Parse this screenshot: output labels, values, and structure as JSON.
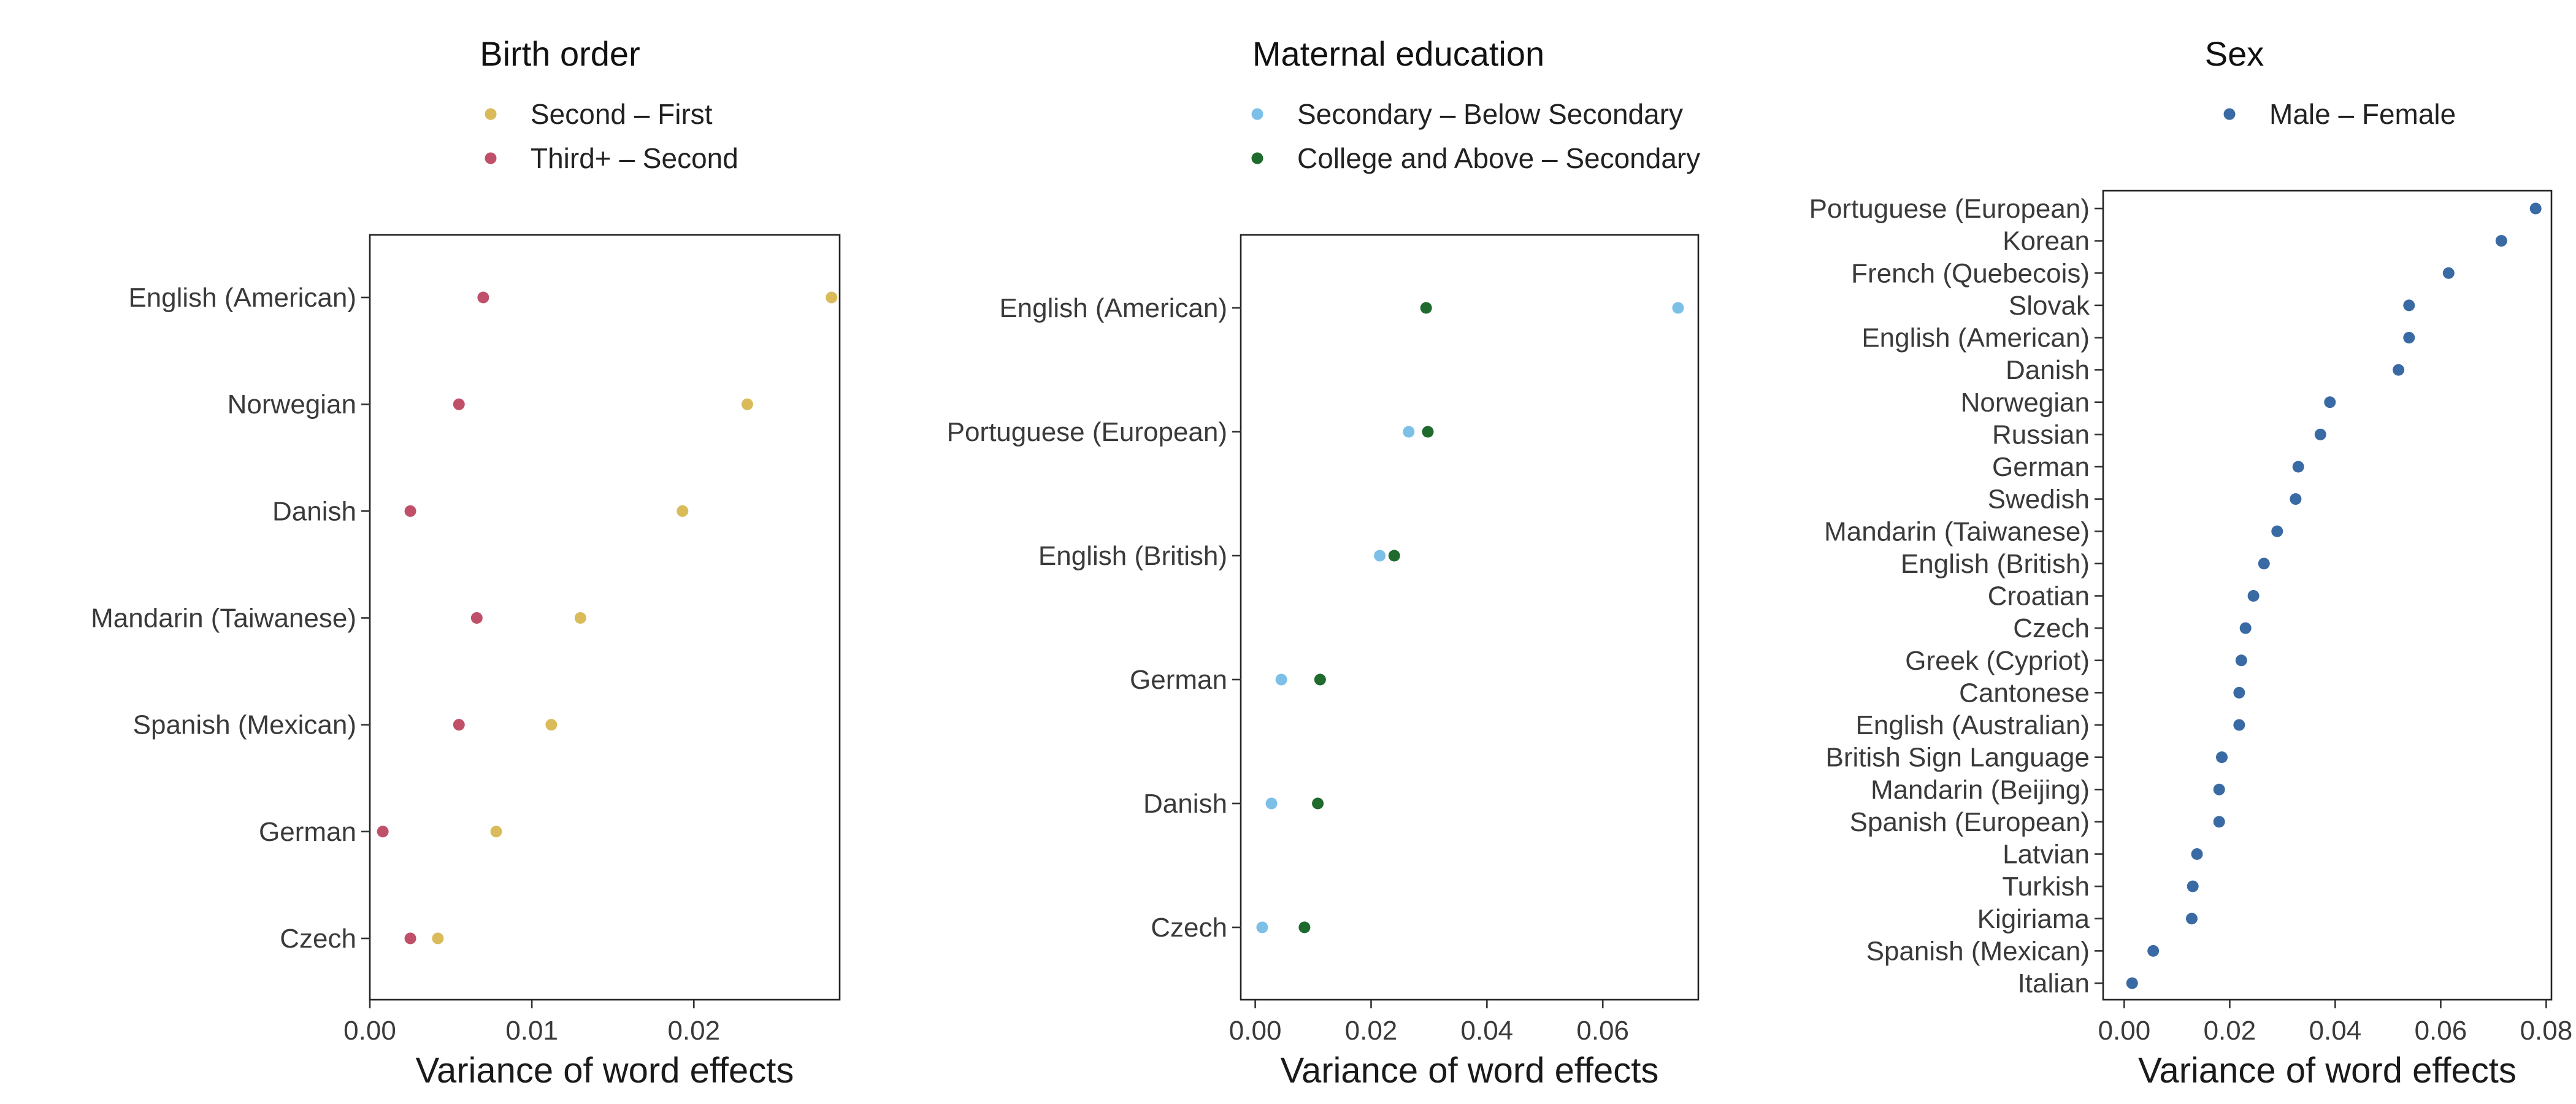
{
  "chart_data": [
    {
      "type": "scatter",
      "title": "Birth order",
      "xlabel": "Variance of word effects",
      "ylabel": "",
      "xlim": [
        0,
        0.029
      ],
      "xticks": [
        "0.00",
        "0.01",
        "0.02"
      ],
      "xtick_values": [
        0,
        0.01,
        0.02
      ],
      "categories": [
        "English (American)",
        "Norwegian",
        "Danish",
        "Mandarin (Taiwanese)",
        "Spanish (Mexican)",
        "German",
        "Czech"
      ],
      "series": [
        {
          "name": "Second – First",
          "color": "#d9bb5a",
          "values": [
            0.0285,
            0.0233,
            0.0193,
            0.013,
            0.0112,
            0.0078,
            0.0042
          ]
        },
        {
          "name": "Third+ – Second",
          "color": "#c0506a",
          "values": [
            0.007,
            0.0055,
            0.0025,
            0.0066,
            0.0055,
            0.0008,
            0.0025
          ]
        }
      ],
      "legend_position": "top",
      "grid": false
    },
    {
      "type": "scatter",
      "title": "Maternal education",
      "xlabel": "Variance of word effects",
      "ylabel": "",
      "xlim": [
        -0.0025,
        0.0765
      ],
      "xticks": [
        "0.00",
        "0.02",
        "0.04",
        "0.06"
      ],
      "xtick_values": [
        0,
        0.02,
        0.04,
        0.06
      ],
      "categories": [
        "English (American)",
        "Portuguese (European)",
        "English (British)",
        "German",
        "Danish",
        "Czech"
      ],
      "series": [
        {
          "name": "Secondary – Below Secondary",
          "color": "#7cc0e8",
          "values": [
            0.073,
            0.0265,
            0.0215,
            0.0045,
            0.0028,
            0.0012
          ]
        },
        {
          "name": "College and Above – Secondary",
          "color": "#1e6b2d",
          "values": [
            0.0295,
            0.0298,
            0.024,
            0.0112,
            0.0108,
            0.0085
          ]
        }
      ],
      "legend_position": "top",
      "grid": false
    },
    {
      "type": "scatter",
      "title": "Sex",
      "xlabel": "Variance of word effects",
      "ylabel": "",
      "xlim": [
        -0.004,
        0.081
      ],
      "xticks": [
        "0.00",
        "0.02",
        "0.04",
        "0.06",
        "0.08"
      ],
      "xtick_values": [
        0,
        0.02,
        0.04,
        0.06,
        0.08
      ],
      "categories": [
        "Portuguese (European)",
        "Korean",
        "French (Quebecois)",
        "Slovak",
        "English (American)",
        "Danish",
        "Norwegian",
        "Russian",
        "German",
        "Swedish",
        "Mandarin (Taiwanese)",
        "English (British)",
        "Croatian",
        "Czech",
        "Greek (Cypriot)",
        "Cantonese",
        "English (Australian)",
        "British Sign Language",
        "Mandarin (Beijing)",
        "Spanish (European)",
        "Latvian",
        "Turkish",
        "Kigiriama",
        "Spanish (Mexican)",
        "Italian"
      ],
      "series": [
        {
          "name": "Male – Female",
          "color": "#3a6aa3",
          "values": [
            0.078,
            0.0715,
            0.0615,
            0.054,
            0.054,
            0.052,
            0.039,
            0.0372,
            0.033,
            0.0325,
            0.029,
            0.0265,
            0.0245,
            0.023,
            0.0222,
            0.0218,
            0.0218,
            0.0185,
            0.018,
            0.018,
            0.0138,
            0.013,
            0.0128,
            0.0055,
            0.0015
          ]
        }
      ],
      "legend_position": "top",
      "grid": false
    }
  ]
}
